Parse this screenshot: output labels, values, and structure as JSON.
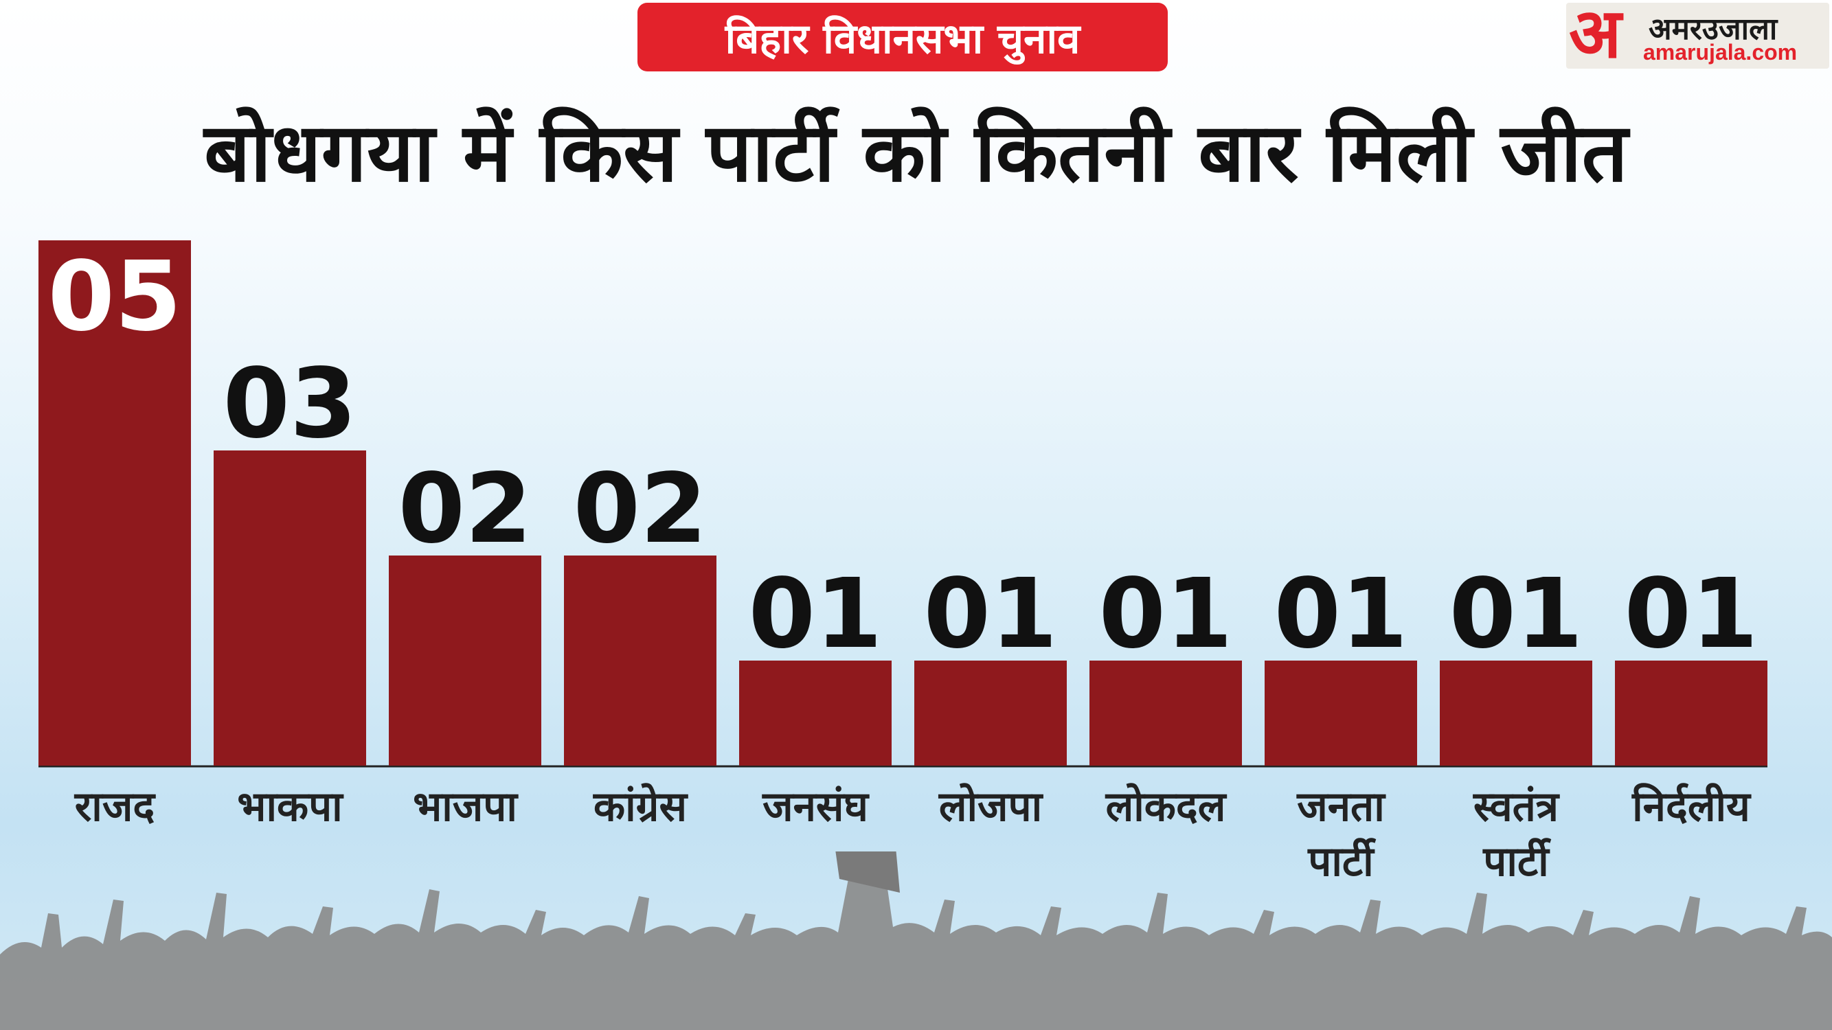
{
  "header": {
    "tag": "बिहार विधानसभा चुनाव",
    "title": "बोधगया में किस पार्टी को कितनी बार मिली जीत"
  },
  "logo": {
    "mark": "अ",
    "name": "अमरउजाला",
    "url": "amarujala.com"
  },
  "colors": {
    "bar": "#8f191d",
    "tag": "#e3222b",
    "brand_red": "#e3222b"
  },
  "chart_data": {
    "type": "bar",
    "categories": [
      [
        "राजद"
      ],
      [
        "भाकपा"
      ],
      [
        "भाजपा"
      ],
      [
        "कांग्रेस"
      ],
      [
        "जनसंघ"
      ],
      [
        "लोजपा"
      ],
      [
        "लोकदल"
      ],
      [
        "जनता",
        "पार्टी"
      ],
      [
        "स्वतंत्र",
        "पार्टी"
      ],
      [
        "निर्दलीय"
      ]
    ],
    "values": [
      5,
      3,
      2,
      2,
      1,
      1,
      1,
      1,
      1,
      1
    ],
    "value_labels": [
      "05",
      "03",
      "02",
      "02",
      "01",
      "01",
      "01",
      "01",
      "01",
      "01"
    ],
    "title": "बोधगया में किस पार्टी को कितनी बार मिली जीत",
    "xlabel": "",
    "ylabel": "",
    "ylim": [
      0,
      5
    ],
    "grid": false,
    "legend": "none"
  }
}
